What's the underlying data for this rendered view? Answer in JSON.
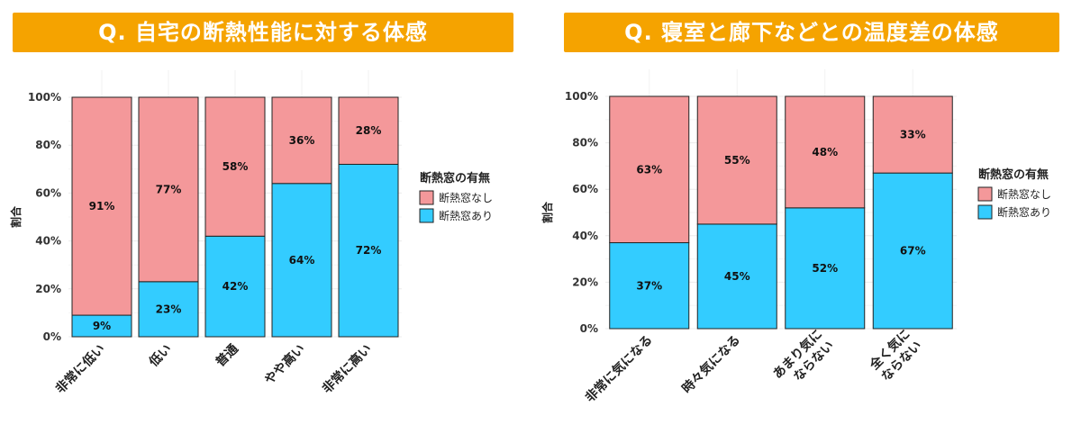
{
  "chart_data": [
    {
      "type": "bar",
      "stacked": true,
      "title": "Q. 自宅の断熱性能に対する体感",
      "title_bg": "#F5A300",
      "xlabel": "",
      "ylabel": "割合",
      "ylim": [
        0,
        100
      ],
      "yticks": [
        "0%",
        "20%",
        "40%",
        "60%",
        "80%",
        "100%"
      ],
      "categories": [
        [
          "非常に低い"
        ],
        [
          "低い"
        ],
        [
          "普通"
        ],
        [
          "やや高い"
        ],
        [
          "非常に高い"
        ]
      ],
      "series": [
        {
          "name": "断熱窓あり",
          "color": "#33CCFF",
          "values": [
            9,
            23,
            42,
            64,
            72
          ],
          "labels": [
            "9%",
            "23%",
            "42%",
            "64%",
            "72%"
          ]
        },
        {
          "name": "断熱窓なし",
          "color": "#F4989A",
          "values": [
            91,
            77,
            58,
            36,
            28
          ],
          "labels": [
            "91%",
            "77%",
            "58%",
            "36%",
            "28%"
          ]
        }
      ],
      "legend": {
        "title": "断熱窓の有無",
        "placement": "right",
        "entries": [
          "断熱窓なし",
          "断熱窓あり"
        ]
      },
      "grid": true
    },
    {
      "type": "bar",
      "stacked": true,
      "title": "Q. 寝室と廊下などとの温度差の体感",
      "title_bg": "#F5A300",
      "xlabel": "",
      "ylabel": "割合",
      "ylim": [
        0,
        100
      ],
      "yticks": [
        "0%",
        "20%",
        "40%",
        "60%",
        "80%",
        "100%"
      ],
      "categories": [
        [
          "非常に気になる"
        ],
        [
          "時々気になる"
        ],
        [
          "あまり気に",
          "ならない"
        ],
        [
          "全く気に",
          "ならない"
        ]
      ],
      "series": [
        {
          "name": "断熱窓あり",
          "color": "#33CCFF",
          "values": [
            37,
            45,
            52,
            67
          ],
          "labels": [
            "37%",
            "45%",
            "52%",
            "67%"
          ]
        },
        {
          "name": "断熱窓なし",
          "color": "#F4989A",
          "values": [
            63,
            55,
            48,
            33
          ],
          "labels": [
            "63%",
            "55%",
            "48%",
            "33%"
          ]
        }
      ],
      "legend": {
        "title": "断熱窓の有無",
        "placement": "right",
        "entries": [
          "断熱窓なし",
          "断熱窓あり"
        ]
      },
      "grid": true
    }
  ]
}
